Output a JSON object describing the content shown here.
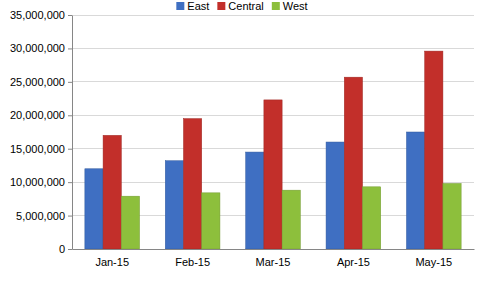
{
  "chart_data": {
    "type": "bar",
    "categories": [
      "Jan-15",
      "Feb-15",
      "Mar-15",
      "Apr-15",
      "May-15"
    ],
    "series": [
      {
        "name": "East",
        "color": "#3f6fc2",
        "values": [
          12000000,
          13200000,
          14500000,
          16000000,
          17500000
        ]
      },
      {
        "name": "Central",
        "color": "#c22f2a",
        "values": [
          17000000,
          19500000,
          22300000,
          25700000,
          29600000
        ]
      },
      {
        "name": "West",
        "color": "#8dbf3c",
        "values": [
          7900000,
          8400000,
          8800000,
          9300000,
          9800000
        ]
      }
    ],
    "ylim": [
      0,
      35000000
    ],
    "yticks": [
      0,
      {
        "value": 5000000,
        "label": "5,000,000"
      },
      {
        "value": 10000000,
        "label": "10,000,000"
      },
      {
        "value": 15000000,
        "label": "15,000,000"
      },
      {
        "value": 20000000,
        "label": "20,000,000"
      },
      {
        "value": 25000000,
        "label": "25,000,000"
      },
      {
        "value": 30000000,
        "label": "30,000,000"
      },
      {
        "value": 35000000,
        "label": "35,000,000"
      }
    ],
    "grid": true,
    "legend": "top"
  }
}
